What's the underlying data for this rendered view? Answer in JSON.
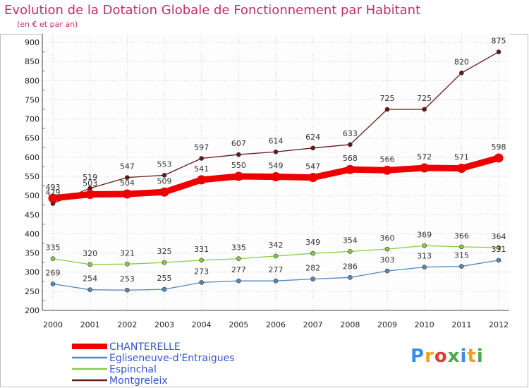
{
  "title": "Evolution de la Dotation Globale de Fonctionnement par Habitant",
  "subtitle": "(en € et par an)",
  "logo": [
    "P",
    "r",
    "o",
    "x",
    "i",
    "t",
    "i"
  ],
  "logo_colors": [
    "#3a8ee6",
    "#f0a020",
    "#e03a3a",
    "#4aa84a",
    "#3a8ee6",
    "#f0a020",
    "#4aa84a"
  ],
  "chart_data": {
    "type": "line",
    "x": [
      "2000",
      "2001",
      "2002",
      "2003",
      "2004",
      "2005",
      "2006",
      "2007",
      "2008",
      "2009",
      "2010",
      "2011",
      "2012"
    ],
    "ylim": [
      200,
      900
    ],
    "yticks": [
      200,
      250,
      300,
      350,
      400,
      450,
      500,
      550,
      600,
      650,
      700,
      750,
      800,
      850,
      900
    ],
    "grid": true,
    "legend_position": "bottom-left",
    "series": [
      {
        "name": "CHANTERELLE",
        "color": "#ee0000",
        "values": [
          493,
          503,
          504,
          509,
          541,
          550,
          549,
          547,
          568,
          566,
          572,
          571,
          598
        ]
      },
      {
        "name": "Egliseneuve-d'Entraigues",
        "color": "#5588bb",
        "values": [
          269,
          254,
          253,
          255,
          273,
          277,
          277,
          282,
          286,
          303,
          313,
          315,
          331
        ]
      },
      {
        "name": "Espinchal",
        "color": "#88cc44",
        "values": [
          335,
          320,
          321,
          325,
          331,
          335,
          342,
          349,
          354,
          360,
          369,
          366,
          364
        ]
      },
      {
        "name": "Montgreleix",
        "color": "#661818",
        "values": [
          479,
          519,
          547,
          553,
          597,
          607,
          614,
          624,
          633,
          725,
          725,
          820,
          875
        ]
      }
    ]
  }
}
